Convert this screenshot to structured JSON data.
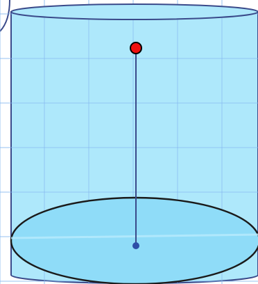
{
  "diagram": {
    "subject": "cylinder",
    "colors": {
      "background": "#ffffff",
      "grid_line": "#86b8f0",
      "cylinder_fill": "#aee8fb",
      "base_fill": "#8fdcf8",
      "cylinder_outline": "#3a4a8a",
      "base_outline": "#1a1a1a",
      "axis_line": "#3a4a8a",
      "top_point": "#ee1111",
      "bottom_point": "#2d4ea8"
    },
    "elements": [
      "cylinder-body",
      "top-ellipse",
      "bottom-base-ellipse",
      "axis-segment",
      "top-center-point",
      "bottom-center-point"
    ]
  }
}
